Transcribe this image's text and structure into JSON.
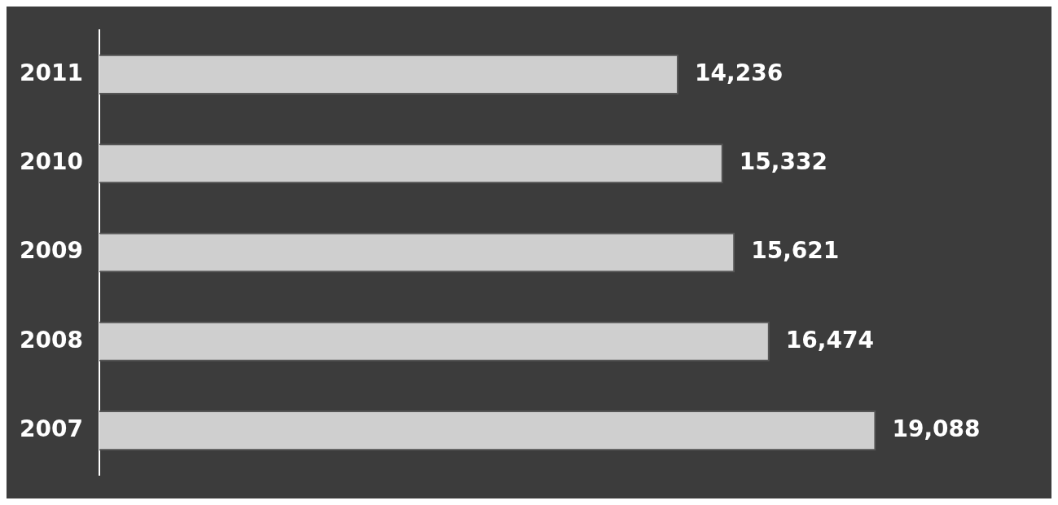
{
  "chart_data": {
    "type": "bar",
    "orientation": "horizontal",
    "categories": [
      "2011",
      "2010",
      "2009",
      "2008",
      "2007"
    ],
    "values": [
      14236,
      15332,
      15621,
      16474,
      19088
    ],
    "value_labels": [
      "14,236",
      "15,332",
      "15,621",
      "16,474",
      "19,088"
    ],
    "color": "#cfcfcf",
    "legend": false
  }
}
